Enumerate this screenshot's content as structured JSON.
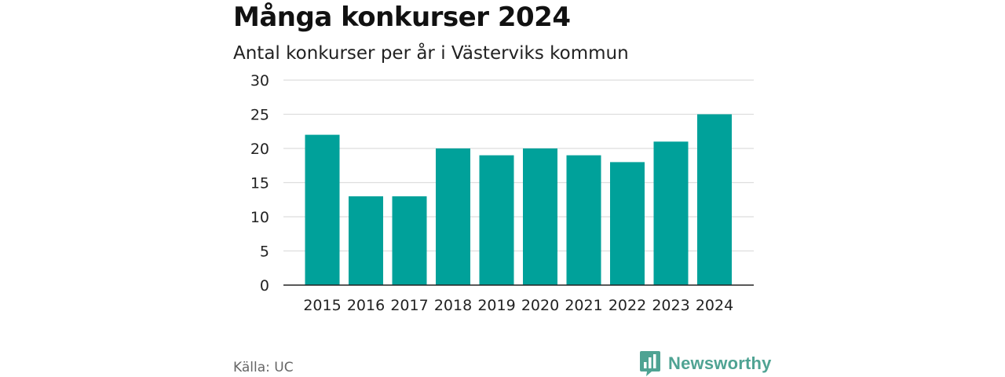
{
  "chart_data": {
    "type": "bar",
    "title": "Många konkurser 2024",
    "subtitle": "Antal konkurser per år i Västerviks kommun",
    "categories": [
      "2015",
      "2016",
      "2017",
      "2018",
      "2019",
      "2020",
      "2021",
      "2022",
      "2023",
      "2024"
    ],
    "values": [
      22,
      13,
      13,
      20,
      19,
      20,
      19,
      18,
      21,
      25
    ],
    "ylim": [
      0,
      30
    ],
    "yticks": [
      0,
      5,
      10,
      15,
      20,
      25,
      30
    ],
    "xlabel": "",
    "ylabel": "",
    "grid": true,
    "bar_color": "#00a19a"
  },
  "footer": {
    "source": "Källa: UC",
    "brand": "Newsworthy",
    "brand_icon": "newsworthy-bar-chart-logo-icon",
    "brand_color": "#4fa393"
  }
}
